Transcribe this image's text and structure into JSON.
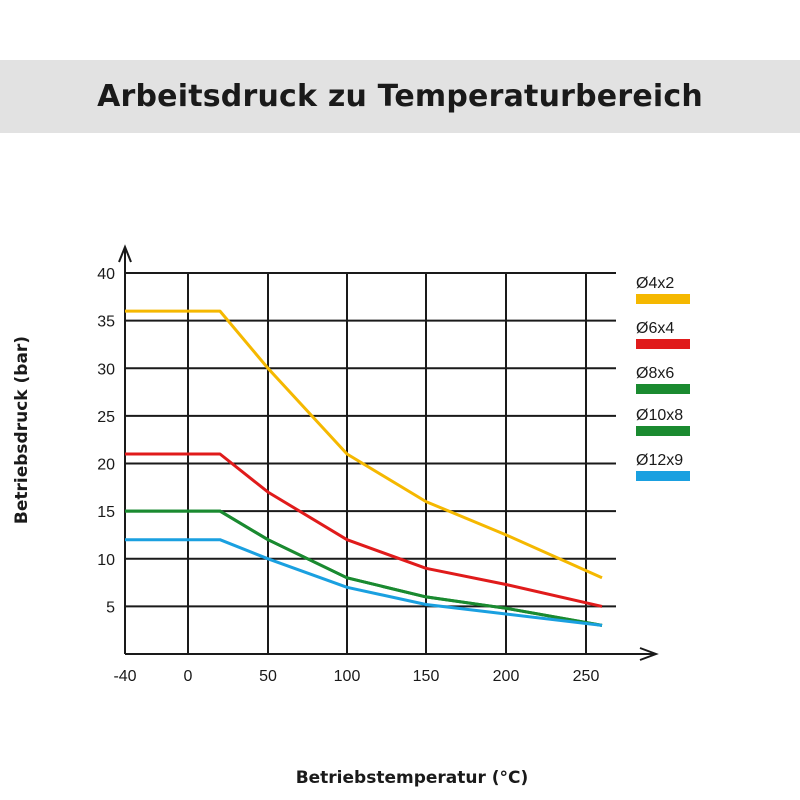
{
  "chart_data": {
    "type": "line",
    "title": "Arbeitsdruck zu Temperaturbereich",
    "xlabel": "Betriebstemperatur (°C)",
    "ylabel": "Betriebsdruck (bar)",
    "xlim": [
      -40,
      260
    ],
    "ylim": [
      0,
      40
    ],
    "x_ticks": [
      -40,
      0,
      50,
      100,
      150,
      200,
      250
    ],
    "y_ticks": [
      5,
      10,
      15,
      20,
      25,
      30,
      35,
      40
    ],
    "grid": true,
    "legend_position": "right",
    "series": [
      {
        "name": "Ø4x2",
        "color": "#f5b800",
        "x": [
          -40,
          20,
          50,
          100,
          150,
          200,
          260
        ],
        "y": [
          36,
          36,
          30,
          21,
          16,
          12.5,
          8
        ]
      },
      {
        "name": "Ø6x4",
        "color": "#e01b1b",
        "x": [
          -40,
          20,
          50,
          100,
          150,
          200,
          260
        ],
        "y": [
          21,
          21,
          17,
          12,
          9,
          7.3,
          5
        ]
      },
      {
        "name": "Ø8x6",
        "color": "#1a8a30",
        "x": [
          -40,
          20,
          50,
          100,
          150,
          200,
          260
        ],
        "y": [
          15,
          15,
          12,
          8,
          6,
          4.8,
          3
        ]
      },
      {
        "name": "Ø10x8",
        "color": "#1a8a30",
        "x": [
          -40,
          20,
          50,
          100,
          150,
          200,
          260
        ],
        "y": [
          15,
          15,
          12,
          8,
          6,
          4.8,
          3
        ]
      },
      {
        "name": "Ø12x9",
        "color": "#1aa0e0",
        "x": [
          -40,
          20,
          50,
          100,
          150,
          200,
          260
        ],
        "y": [
          12,
          12,
          10,
          7,
          5.2,
          4.2,
          3
        ]
      }
    ]
  }
}
